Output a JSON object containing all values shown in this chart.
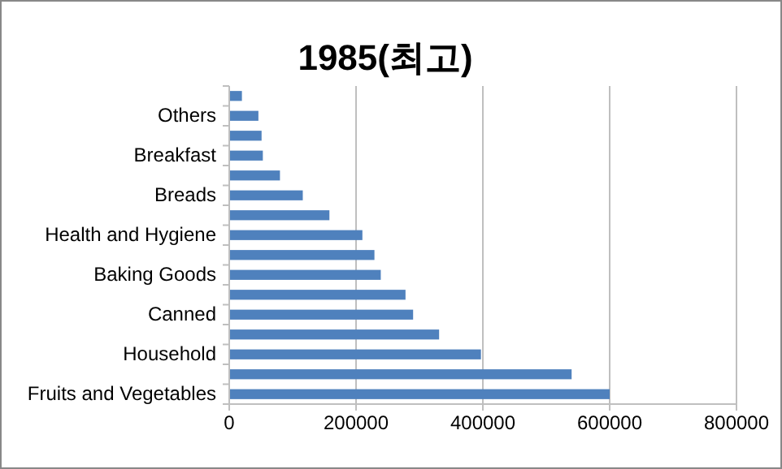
{
  "chart_data": {
    "type": "bar",
    "orientation": "horizontal",
    "title": "1985(최고)",
    "categories": [
      null,
      "Others",
      null,
      "Breakfast",
      null,
      "Breads",
      null,
      "Health and Hygiene",
      null,
      "Baking Goods",
      null,
      "Canned",
      null,
      "Household",
      null,
      "Fruits and Vegetables"
    ],
    "values": [
      20000,
      46000,
      51000,
      53000,
      80000,
      116000,
      158000,
      210000,
      229000,
      239000,
      278000,
      290000,
      331000,
      397000,
      540000,
      600000
    ],
    "color": "#4f81bd",
    "xlim": [
      0,
      800000
    ],
    "xticks": [
      0,
      200000,
      400000,
      600000,
      800000
    ],
    "grid": "x"
  }
}
